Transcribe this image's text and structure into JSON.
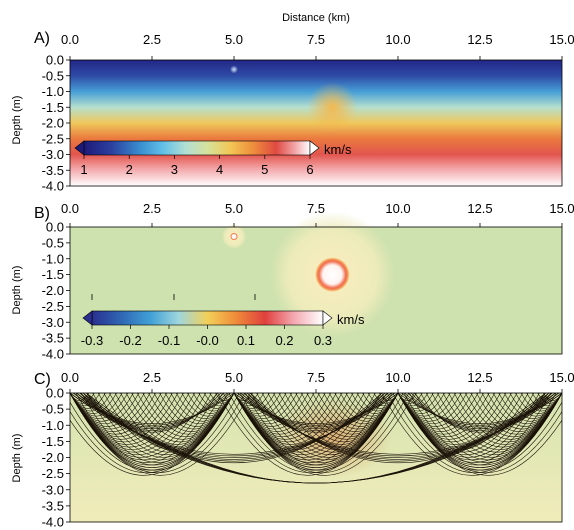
{
  "xlabel": "Distance (km)",
  "chart_data": [
    {
      "type": "heatmap",
      "panel": "A)",
      "title": "",
      "xlabel": "Distance (km)",
      "ylabel": "Depth (m)",
      "xlim": [
        0,
        15
      ],
      "ylim": [
        -4.0,
        0.0
      ],
      "x_ticks": [
        "0.0",
        "2.5",
        "5.0",
        "7.5",
        "10.0",
        "12.5",
        "15.0"
      ],
      "y_ticks": [
        "0.0",
        "-0.5",
        "-1.0",
        "-1.5",
        "-2.0",
        "-2.5",
        "-3.0",
        "-3.5",
        "-4.0"
      ],
      "colorbar": {
        "ticks": [
          "1",
          "2",
          "3",
          "4",
          "5",
          "6"
        ],
        "range": [
          1,
          6
        ],
        "unit": "km/s"
      },
      "velocity_profile": [
        {
          "depth": 0.0,
          "velocity": 1.2
        },
        {
          "depth": -0.5,
          "velocity": 1.7
        },
        {
          "depth": -1.0,
          "velocity": 2.4
        },
        {
          "depth": -1.5,
          "velocity": 3.3
        },
        {
          "depth": -2.0,
          "velocity": 4.2
        },
        {
          "depth": -2.5,
          "velocity": 4.9
        },
        {
          "depth": -3.0,
          "velocity": 5.3
        },
        {
          "depth": -3.5,
          "velocity": 5.7
        },
        {
          "depth": -4.0,
          "velocity": 6.0
        }
      ],
      "anomalies": [
        {
          "x": 5.0,
          "depth": -0.3,
          "radius": 0.08
        },
        {
          "x": 8.0,
          "depth": -1.5,
          "radius": 0.5
        }
      ]
    },
    {
      "type": "heatmap",
      "panel": "B)",
      "title": "",
      "xlabel": "Distance (km)",
      "ylabel": "Depth (m)",
      "xlim": [
        0,
        15
      ],
      "ylim": [
        -4.0,
        0.0
      ],
      "x_ticks": [
        "0.0",
        "2.5",
        "5.0",
        "7.5",
        "10.0",
        "12.5",
        "15.0"
      ],
      "y_ticks": [
        "0.0",
        "-0.5",
        "-1.0",
        "-1.5",
        "-2.0",
        "-2.5",
        "-3.0",
        "-3.5",
        "-4.0"
      ],
      "colorbar": {
        "ticks": [
          "-0.3",
          "-0.2",
          "-0.1",
          "-0.0",
          "0.1",
          "0.2",
          "0.3"
        ],
        "range": [
          -0.3,
          0.3
        ],
        "unit": "km/s"
      },
      "anomalies": [
        {
          "x": 5.0,
          "depth": -0.3,
          "amplitude": 0.3,
          "radius": 0.12,
          "halo_radius": 0.4
        },
        {
          "x": 8.0,
          "depth": -1.5,
          "amplitude": 0.3,
          "radius": 0.55,
          "halo_radius": 2.0
        }
      ]
    },
    {
      "type": "heatmap",
      "panel": "C)",
      "title": "",
      "xlabel": "Distance (km)",
      "ylabel": "Depth (m)",
      "xlim": [
        0,
        15
      ],
      "ylim": [
        -4.0,
        0.0
      ],
      "x_ticks": [
        "0.0",
        "2.5",
        "5.0",
        "7.5",
        "10.0",
        "12.5",
        "15.0"
      ],
      "y_ticks": [
        "0.0",
        "-0.5",
        "-1.0",
        "-1.5",
        "-2.0",
        "-2.5",
        "-3.0",
        "-3.5",
        "-4.0"
      ],
      "ray_sources": [
        0.0,
        5.0,
        10.0,
        15.0
      ],
      "ray_count_per_pair": 30
    }
  ]
}
